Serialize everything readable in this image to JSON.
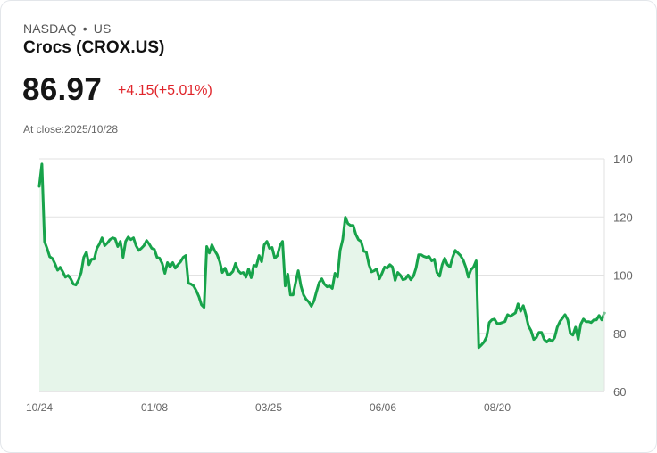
{
  "header": {
    "exchange": "NASDAQ",
    "separator": "•",
    "market": "US",
    "title": "Crocs (CROX.US)",
    "price": "86.97",
    "change": "+4.15(+5.01%)",
    "close_label": "At close:2025/10/28"
  },
  "colors": {
    "line": "#17a34a",
    "fill": "#e6f5ea",
    "change_up": "#e0252b",
    "grid": "#e2e2e2"
  },
  "chart_data": {
    "type": "area",
    "title": "Crocs (CROX.US)",
    "xlabel": "",
    "ylabel": "",
    "ylim": [
      60,
      140
    ],
    "yticks": [
      140,
      120,
      100,
      80,
      60
    ],
    "xticks": [
      "10/24",
      "01/08",
      "03/25",
      "06/06",
      "08/20"
    ],
    "grid": "horizontal",
    "y_axis_position": "right",
    "last_value": 86.97,
    "values": [
      130.5,
      138.2,
      111.5,
      109.1,
      106.3,
      105.7,
      103.9,
      101.7,
      102.7,
      101.1,
      99.3,
      99.9,
      98.7,
      96.9,
      96.6,
      98.4,
      100.9,
      106.1,
      107.9,
      103.6,
      105.5,
      105.5,
      109.2,
      110.7,
      112.8,
      110.1,
      111.0,
      112.2,
      112.8,
      112.5,
      109.8,
      111.6,
      106.1,
      111.6,
      113.1,
      112.2,
      112.8,
      110.1,
      108.5,
      109.2,
      110.1,
      111.9,
      110.7,
      109.2,
      108.9,
      106.1,
      105.8,
      104.0,
      100.6,
      104.3,
      102.8,
      104.3,
      102.4,
      103.6,
      104.6,
      106.1,
      106.7,
      97.2,
      96.9,
      96.3,
      94.7,
      92.6,
      89.8,
      88.9,
      109.8,
      107.6,
      110.4,
      108.5,
      107.0,
      104.6,
      100.9,
      102.4,
      100.0,
      100.3,
      101.3,
      104.0,
      101.6,
      100.6,
      100.9,
      99.3,
      102.1,
      99.1,
      103.4,
      103.1,
      106.7,
      104.6,
      110.4,
      111.6,
      109.2,
      109.5,
      105.8,
      106.7,
      110.1,
      111.6,
      96.3,
      100.3,
      93.2,
      93.2,
      97.5,
      101.5,
      96.3,
      93.2,
      91.7,
      90.8,
      89.3,
      91.1,
      94.4,
      97.5,
      98.7,
      96.9,
      96.0,
      96.3,
      95.4,
      100.6,
      99.3,
      108.5,
      112.2,
      119.9,
      117.7,
      117.1,
      117.1,
      114.0,
      112.2,
      111.6,
      108.2,
      107.9,
      103.6,
      101.1,
      101.5,
      102.1,
      98.7,
      100.6,
      102.8,
      102.4,
      103.6,
      102.8,
      98.2,
      100.9,
      100.0,
      98.4,
      98.7,
      100.0,
      98.4,
      99.6,
      102.4,
      107.0,
      107.0,
      106.4,
      106.1,
      106.4,
      104.9,
      105.5,
      100.9,
      99.6,
      103.6,
      105.8,
      103.6,
      102.8,
      106.1,
      108.5,
      107.6,
      106.7,
      105.2,
      102.8,
      99.3,
      101.8,
      102.8,
      104.9,
      75.1,
      76.0,
      77.0,
      78.8,
      83.7,
      84.6,
      84.9,
      83.4,
      83.4,
      83.7,
      84.0,
      86.4,
      85.8,
      86.4,
      87.0,
      90.1,
      87.6,
      89.5,
      86.4,
      82.5,
      80.9,
      77.9,
      78.5,
      80.3,
      80.3,
      77.9,
      77.0,
      77.9,
      77.3,
      78.5,
      82.1,
      84.0,
      85.2,
      86.4,
      84.6,
      80.0,
      79.4,
      82.1,
      77.9,
      83.1,
      84.9,
      84.0,
      84.0,
      83.7,
      84.6,
      84.6,
      86.1,
      84.6,
      86.97
    ]
  }
}
